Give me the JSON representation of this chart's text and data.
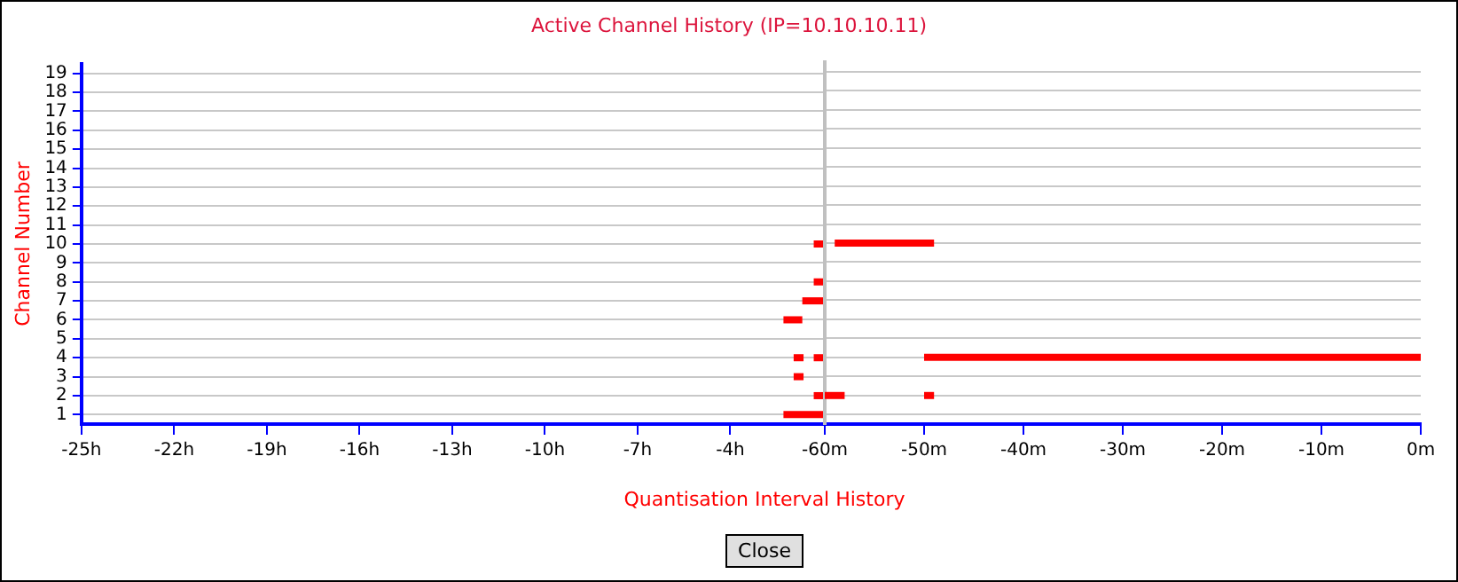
{
  "chart_data": [
    {
      "type": "line",
      "title": "Active Channel History (IP=10.10.10.11)",
      "xlabel": "Quantisation Interval History",
      "ylabel": "Channel Number",
      "xlim": [
        -25,
        -1
      ],
      "xticks": [
        {
          "value": -25,
          "label": "-25h"
        },
        {
          "value": -22,
          "label": "-22h"
        },
        {
          "value": -19,
          "label": "-19h"
        },
        {
          "value": -16,
          "label": "-16h"
        },
        {
          "value": -13,
          "label": "-13h"
        },
        {
          "value": -10,
          "label": "-10h"
        },
        {
          "value": -7,
          "label": "-7h"
        },
        {
          "value": -4,
          "label": "-4h"
        }
      ],
      "ylim": [
        0.5,
        19.5
      ],
      "yticks": [
        1,
        2,
        3,
        4,
        5,
        6,
        7,
        8,
        9,
        10,
        11,
        12,
        13,
        14,
        15,
        16,
        17,
        18,
        19
      ],
      "grid": "y",
      "legend": false,
      "marker": "none",
      "line_style": "solid",
      "annotations": [
        "Close"
      ],
      "series": [
        {
          "color": "#ff0000",
          "x": [
            -1.3,
            -1
          ],
          "values": [
            10,
            10
          ]
        },
        {
          "color": "#ff0000",
          "x": [
            -1.3,
            -1
          ],
          "values": [
            8,
            8
          ]
        },
        {
          "color": "#ff0000",
          "x": [
            -1.67,
            -1
          ],
          "values": [
            7,
            7
          ]
        },
        {
          "color": "#ff0000",
          "x": [
            -2.28,
            -1.67
          ],
          "values": [
            6,
            6
          ]
        },
        {
          "color": "#ff0000",
          "x": [
            -1.95,
            -1.63
          ],
          "values": [
            4,
            4
          ]
        },
        {
          "color": "#ff0000",
          "x": [
            -1.3,
            -1
          ],
          "values": [
            4,
            4
          ]
        },
        {
          "color": "#ff0000",
          "x": [
            -1.95,
            -1.63
          ],
          "values": [
            3,
            3
          ]
        },
        {
          "color": "#ff0000",
          "x": [
            -1.3,
            -1
          ],
          "values": [
            2,
            2
          ]
        },
        {
          "color": "#ff0000",
          "x": [
            -2.28,
            -1
          ],
          "values": [
            1,
            1
          ]
        }
      ]
    },
    {
      "type": "line",
      "xlim": [
        -60,
        0
      ],
      "xticks": [
        {
          "value": -60,
          "label": "-60m"
        },
        {
          "value": -50,
          "label": "-50m"
        },
        {
          "value": -40,
          "label": "-40m"
        },
        {
          "value": -30,
          "label": "-30m"
        },
        {
          "value": -20,
          "label": "-20m"
        },
        {
          "value": -10,
          "label": "-10m"
        },
        {
          "value": 0,
          "label": "0m"
        }
      ],
      "ylim": [
        0.5,
        19.5
      ],
      "yticks": [
        1,
        2,
        3,
        4,
        5,
        6,
        7,
        8,
        9,
        10,
        11,
        12,
        13,
        14,
        15,
        16,
        17,
        18,
        19
      ],
      "tick_labels": "x",
      "grid": "y",
      "legend": false,
      "marker": "none",
      "line_style": "solid",
      "series": [
        {
          "color": "#ff0000",
          "x": [
            -59,
            -49
          ],
          "values": [
            10,
            10
          ]
        },
        {
          "color": "#ff0000",
          "x": [
            -50,
            0
          ],
          "values": [
            4,
            4
          ]
        },
        {
          "color": "#ff0000",
          "x": [
            -60,
            -58
          ],
          "values": [
            2,
            2
          ]
        },
        {
          "color": "#ff0000",
          "x": [
            -50,
            -49
          ],
          "values": [
            2,
            2
          ]
        }
      ]
    }
  ]
}
